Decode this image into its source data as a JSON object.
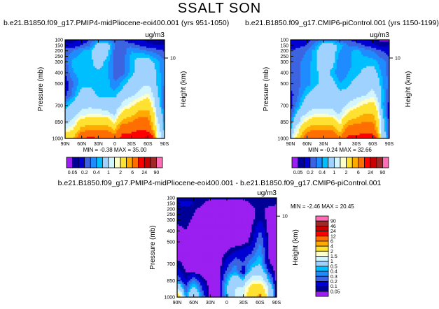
{
  "title": "SSALT SON",
  "colors": [
    "#9b1ff0",
    "#000096",
    "#0000d2",
    "#3c64e1",
    "#1e8cff",
    "#00bfff",
    "#a0d2ff",
    "#d2f5ff",
    "#ffffc8",
    "#ffe132",
    "#ffaa00",
    "#ff6e00",
    "#ff0000",
    "#c80000",
    "#a02828",
    "#ff6eb4"
  ],
  "levels": [
    0.05,
    0.1,
    0.2,
    0.3,
    0.4,
    0.5,
    1,
    1.5,
    2,
    4,
    6,
    12,
    24,
    46,
    90
  ],
  "chart_data": [
    {
      "type": "heatmap",
      "subtitle": "b.e21.B1850.f09_g17.PMIP4-midPliocene-eoi400.001 (yrs 951-1050)",
      "units": "ug/m3",
      "xlabel": "",
      "ylabel": "Pressure (mb)",
      "ylabel_right": "Height (km)",
      "right_ticks": [
        "10"
      ],
      "x_ticks": [
        "90N",
        "60N",
        "30N",
        "0",
        "30S",
        "60S",
        "90S"
      ],
      "y_ticks": [
        "100",
        "150",
        "200",
        "250",
        "300",
        "400",
        "500",
        "700",
        "850",
        "1000"
      ],
      "min_label": "MIN =",
      "min": "-0.38",
      "max_label": "MAX =",
      "max": "35.00",
      "colorbar_labels": [
        "0.05",
        "0.2",
        "0.4",
        "1",
        "2",
        "6",
        "24",
        "90"
      ],
      "lat": [
        90,
        75,
        60,
        45,
        30,
        15,
        0,
        -15,
        -30,
        -45,
        -60,
        -75,
        -90
      ],
      "pressure": [
        100,
        150,
        200,
        300,
        400,
        500,
        600,
        700,
        775,
        850,
        925,
        1000
      ],
      "values": [
        [
          0.08,
          0.08,
          0.1,
          0.2,
          0.3,
          0.3,
          0.25,
          0.2,
          0.12,
          0.1,
          0.08,
          0.08,
          0.08
        ],
        [
          0.12,
          0.12,
          0.2,
          0.3,
          0.6,
          0.6,
          0.3,
          0.3,
          0.25,
          0.2,
          0.12,
          0.1,
          0.1
        ],
        [
          0.25,
          0.3,
          0.4,
          0.45,
          0.7,
          0.6,
          0.25,
          0.25,
          0.4,
          0.35,
          0.3,
          0.25,
          0.2
        ],
        [
          0.25,
          0.45,
          0.45,
          0.45,
          0.6,
          0.45,
          0.25,
          0.25,
          0.45,
          0.6,
          0.6,
          0.45,
          0.3
        ],
        [
          0.2,
          0.4,
          0.45,
          0.45,
          0.45,
          0.45,
          0.25,
          0.25,
          0.45,
          0.6,
          0.7,
          0.5,
          0.3
        ],
        [
          0.12,
          0.3,
          0.45,
          0.45,
          0.45,
          0.45,
          0.3,
          0.45,
          0.6,
          0.8,
          0.9,
          0.5,
          0.3
        ],
        [
          0.15,
          0.35,
          0.6,
          0.6,
          0.45,
          0.45,
          0.45,
          0.6,
          0.8,
          1.2,
          1.6,
          0.6,
          0.2
        ],
        [
          0.4,
          0.6,
          0.8,
          0.8,
          0.7,
          0.7,
          0.6,
          1.2,
          1.8,
          2.5,
          3,
          0.7,
          0.2
        ],
        [
          0.6,
          0.8,
          1.2,
          1.5,
          1.4,
          1.2,
          0.8,
          2.5,
          3,
          5,
          5,
          1,
          0.3
        ],
        [
          0.8,
          1.2,
          2.5,
          3,
          3,
          3,
          1.5,
          5,
          6,
          8,
          7,
          1.2,
          0.3
        ],
        [
          1.5,
          2,
          5,
          6,
          6,
          6,
          4,
          10,
          10,
          12,
          10,
          1.5,
          0.4
        ],
        [
          3,
          4,
          10,
          14,
          12,
          10,
          8,
          16,
          16,
          20,
          28,
          2,
          0.5
        ]
      ]
    },
    {
      "type": "heatmap",
      "subtitle": "b.e21.B1850.f09_g17.CMIP6-piControl.001 (yrs 1150-1199)",
      "units": "ug/m3",
      "xlabel": "",
      "ylabel": "Pressure (mb)",
      "ylabel_right": "Height (km)",
      "right_ticks": [
        "10"
      ],
      "x_ticks": [
        "90N",
        "60N",
        "30N",
        "0",
        "30S",
        "60S",
        "90S"
      ],
      "y_ticks": [
        "100",
        "150",
        "200",
        "250",
        "300",
        "400",
        "500",
        "700",
        "850",
        "1000"
      ],
      "min_label": "MIN =",
      "min": "-0.24",
      "max_label": "MAX =",
      "max": "32.66",
      "colorbar_labels": [
        "0.05",
        "0.2",
        "0.4",
        "1",
        "2",
        "6",
        "24",
        "90"
      ],
      "lat": [
        90,
        75,
        60,
        45,
        30,
        15,
        0,
        -15,
        -30,
        -45,
        -60,
        -75,
        -90
      ],
      "pressure": [
        100,
        150,
        200,
        300,
        400,
        500,
        600,
        700,
        775,
        850,
        925,
        1000
      ],
      "values": [
        [
          0.1,
          0.12,
          0.15,
          0.25,
          0.3,
          0.3,
          0.25,
          0.2,
          0.15,
          0.1,
          0.08,
          0.04,
          0.04
        ],
        [
          0.15,
          0.15,
          0.2,
          0.35,
          0.6,
          0.6,
          0.45,
          0.3,
          0.25,
          0.2,
          0.12,
          0.08,
          0.1
        ],
        [
          0.2,
          0.25,
          0.3,
          0.45,
          0.7,
          0.6,
          0.4,
          0.35,
          0.45,
          0.35,
          0.3,
          0.2,
          0.15
        ],
        [
          0.25,
          0.28,
          0.35,
          0.45,
          0.7,
          0.6,
          0.3,
          0.35,
          0.45,
          0.45,
          0.45,
          0.35,
          0.25
        ],
        [
          0.25,
          0.28,
          0.35,
          0.45,
          0.6,
          0.45,
          0.3,
          0.4,
          0.45,
          0.55,
          0.6,
          0.4,
          0.25
        ],
        [
          0.25,
          0.28,
          0.35,
          0.45,
          0.6,
          0.6,
          0.4,
          0.45,
          0.6,
          0.7,
          0.8,
          0.45,
          0.25
        ],
        [
          0.15,
          0.3,
          0.5,
          0.6,
          0.7,
          0.7,
          0.55,
          0.6,
          0.7,
          0.9,
          1.2,
          0.5,
          0.2
        ],
        [
          0.15,
          0.4,
          0.7,
          0.8,
          0.8,
          0.8,
          0.7,
          1.1,
          1.6,
          2.2,
          2.5,
          0.5,
          0.15
        ],
        [
          0.2,
          0.6,
          1,
          1.4,
          1.4,
          1.3,
          0.9,
          2.2,
          3,
          4,
          4,
          0.6,
          0.15
        ],
        [
          0.3,
          0.9,
          2.2,
          3,
          3,
          3,
          1.5,
          4.5,
          5,
          6,
          6,
          0.7,
          0.15
        ],
        [
          0.4,
          1.8,
          5,
          6,
          6,
          6,
          3,
          8,
          9,
          10,
          8,
          0.8,
          0.15
        ],
        [
          0.5,
          3,
          9,
          12,
          12,
          10,
          6,
          14,
          14,
          16,
          18,
          1,
          0.2
        ]
      ]
    },
    {
      "type": "heatmap",
      "subtitle": "b.e21.B1850.f09_g17.PMIP4-midPliocene-eoi400.001 - b.e21.B1850.f09_g17.CMIP6-piControl.001",
      "units": "ug/m3",
      "xlabel": "",
      "ylabel": "Pressure (mb)",
      "ylabel_right": "Height (km)",
      "right_ticks": [
        "10"
      ],
      "x_ticks": [
        "90N",
        "60N",
        "30N",
        "0",
        "30S",
        "60S",
        "90S"
      ],
      "y_ticks": [
        "100",
        "150",
        "200",
        "250",
        "300",
        "400",
        "500",
        "700",
        "850",
        "1000"
      ],
      "min_label": "MIN =",
      "min": "-2.46",
      "max_label": "MAX =",
      "max": "20.45",
      "colorbar_labels": [
        "0.05",
        "0.1",
        "0.2",
        "0.3",
        "0.4",
        "0.5",
        "1",
        "1.5",
        "2",
        "4",
        "6",
        "12",
        "24",
        "46",
        "90"
      ],
      "lat": [
        90,
        75,
        60,
        45,
        30,
        15,
        0,
        -15,
        -30,
        -45,
        -60,
        -75,
        -90
      ],
      "pressure": [
        100,
        150,
        200,
        300,
        400,
        500,
        600,
        700,
        775,
        850,
        925,
        1000
      ],
      "values": [
        [
          0.06,
          0.06,
          0.06,
          0.06,
          0.06,
          0.06,
          0.06,
          0.06,
          0.06,
          0.06,
          0.06,
          0.06,
          0.06
        ],
        [
          0.1,
          0.15,
          0.1,
          0.06,
          0.03,
          0.02,
          0.03,
          0.03,
          0.03,
          0.06,
          0.08,
          0.08,
          0.06
        ],
        [
          0.07,
          0.07,
          0.06,
          0.03,
          0.02,
          0,
          0,
          0,
          0,
          0.03,
          0.07,
          0.03,
          0.02
        ],
        [
          0.07,
          0.07,
          0.04,
          0.02,
          0,
          0,
          0,
          0,
          0,
          0.03,
          0.1,
          0.03,
          0.02
        ],
        [
          0.02,
          0.05,
          0.02,
          0,
          0,
          0,
          0,
          0,
          0,
          0.05,
          0.2,
          0.03,
          0
        ],
        [
          0,
          0,
          0,
          0,
          0,
          0,
          0,
          0,
          0.02,
          0.08,
          0.3,
          0.05,
          0
        ],
        [
          0,
          0,
          0,
          0,
          0,
          0,
          0.06,
          0.12,
          0.15,
          0.2,
          0.4,
          0.05,
          0
        ],
        [
          0.08,
          0.03,
          0,
          0,
          0,
          0,
          0.15,
          0.3,
          0.2,
          0.4,
          0.5,
          0.06,
          0
        ],
        [
          0.15,
          0.05,
          0.04,
          0,
          0,
          0,
          0.25,
          0.4,
          0.1,
          0.6,
          0.8,
          0.2,
          0
        ],
        [
          0.3,
          0.1,
          0.3,
          0.1,
          0,
          0,
          0.4,
          0.8,
          0.5,
          1.5,
          1.5,
          0.5,
          0
        ],
        [
          1,
          0.2,
          0.6,
          0.2,
          0,
          0,
          0.5,
          1,
          1.2,
          2.5,
          3,
          1,
          0
        ],
        [
          3,
          0.3,
          1,
          0.3,
          0,
          0,
          0.4,
          1,
          1.5,
          3,
          5,
          1,
          0
        ]
      ]
    }
  ]
}
